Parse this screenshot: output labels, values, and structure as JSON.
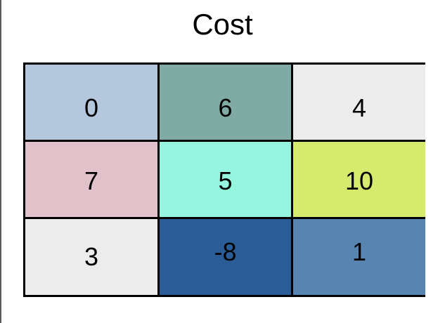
{
  "title": "Cost",
  "grid": {
    "rows": [
      [
        {
          "value": "0",
          "color": "#b4c7dd"
        },
        {
          "value": "6",
          "color": "#80aba4"
        },
        {
          "value": "4",
          "color": "#ececec"
        }
      ],
      [
        {
          "value": "7",
          "color": "#e2c2ca"
        },
        {
          "value": "5",
          "color": "#96f5df"
        },
        {
          "value": "10",
          "color": "#d6ea6d"
        }
      ],
      [
        {
          "value": "3",
          "color": "#ececec"
        },
        {
          "value": "-8",
          "color": "#2a5d98"
        },
        {
          "value": "1",
          "color": "#5884b2"
        }
      ]
    ]
  }
}
